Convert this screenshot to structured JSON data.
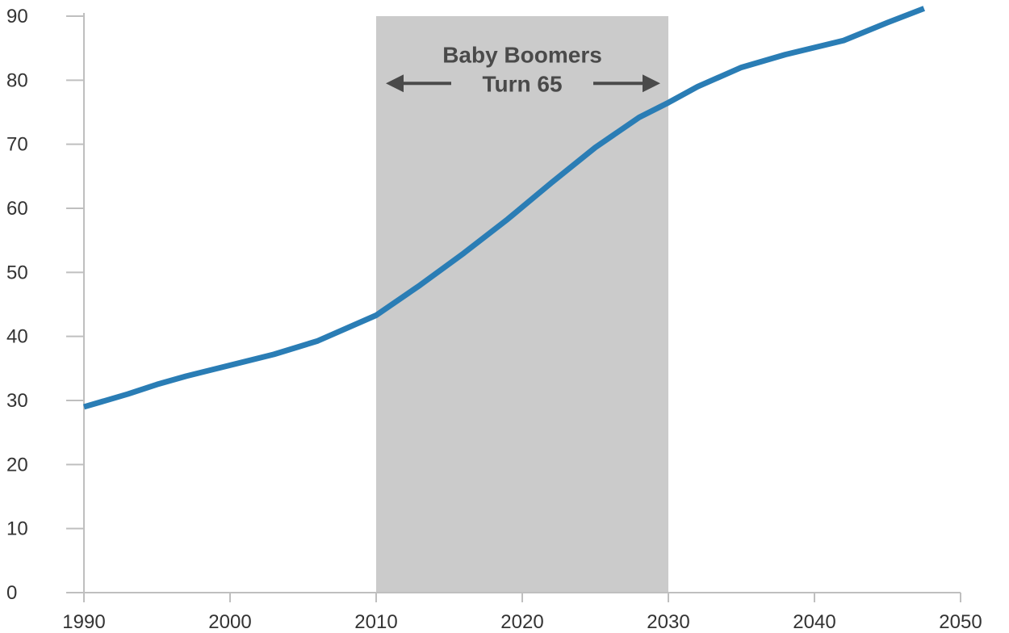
{
  "chart_data": {
    "type": "line",
    "title": "",
    "xlabel": "",
    "ylabel": "",
    "xlim": [
      1990,
      2050
    ],
    "ylim": [
      0,
      90
    ],
    "x_ticks": [
      "1990",
      "2000",
      "2010",
      "2020",
      "2030",
      "2040",
      "2050"
    ],
    "y_ticks": [
      "0",
      "10",
      "20",
      "30",
      "40",
      "50",
      "60",
      "70",
      "80",
      "90"
    ],
    "grid": false,
    "legend": "none",
    "series": [
      {
        "color": "#2a7db5",
        "x": [
          1990,
          1993,
          1995,
          1997,
          2000,
          2003,
          2006,
          2010,
          2013,
          2016,
          2019,
          2022,
          2025,
          2028,
          2030,
          2032,
          2035,
          2038,
          2042,
          2045,
          2047.5
        ],
        "y": [
          29,
          31,
          32.5,
          33.8,
          35.5,
          37.2,
          39.3,
          43.3,
          48,
          53,
          58.3,
          64,
          69.5,
          74.2,
          76.5,
          79,
          82,
          84,
          86.2,
          89,
          91.2
        ]
      }
    ],
    "shaded_region": {
      "x_start": 2010,
      "x_end": 2030,
      "color": "#cbcbcb"
    },
    "annotations": [
      {
        "text": "Baby Boomers",
        "x": 2020,
        "y": 84
      },
      {
        "text": "Turn 65",
        "x": 2020,
        "y": 79.5
      }
    ],
    "colors": {
      "axis": "#bfbfbf",
      "arrow": "#4a4a4a",
      "text": "#333333"
    }
  }
}
